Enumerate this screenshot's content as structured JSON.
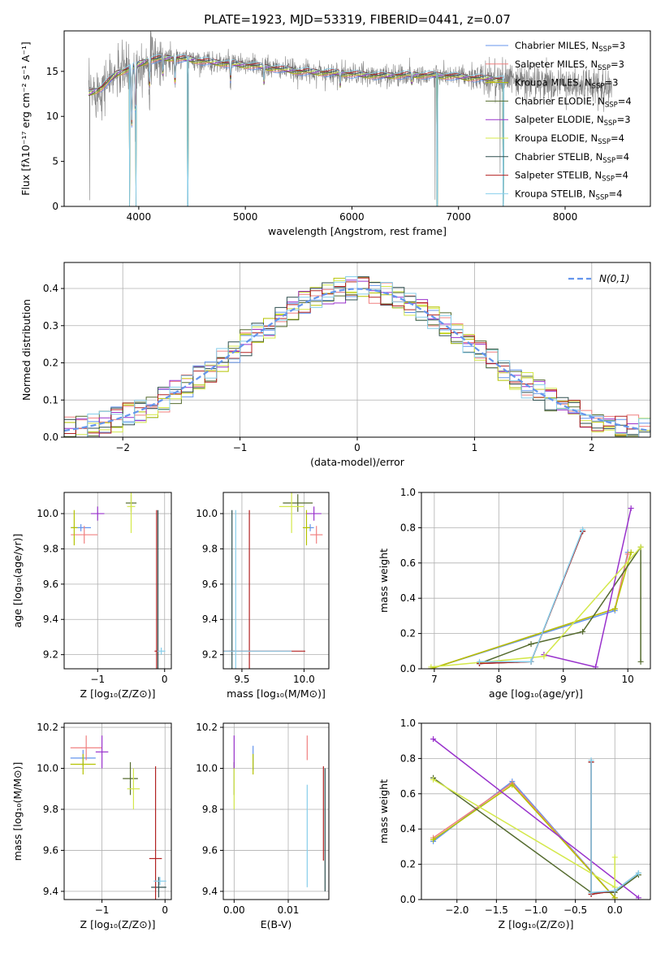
{
  "figure_title": "PLATE=1923, MJD=53319, FIBERID=0441, z=0.07",
  "models": [
    {
      "name": "Chabrier MILES, N",
      "sub": "SSP",
      "suffix": "=3",
      "color": "#6495ed"
    },
    {
      "name": "Salpeter MILES, N",
      "sub": "SSP",
      "suffix": "=3",
      "color": "#f08080"
    },
    {
      "name": "Kroupa MILES, N",
      "sub": "SSP",
      "suffix": "=3",
      "color": "#b5c300"
    },
    {
      "name": "Chabrier ELODIE, N",
      "sub": "SSP",
      "suffix": "=4",
      "color": "#556b2f"
    },
    {
      "name": "Salpeter ELODIE, N",
      "sub": "SSP",
      "suffix": "=3",
      "color": "#9932cc"
    },
    {
      "name": "Kroupa ELODIE, N",
      "sub": "SSP",
      "suffix": "=4",
      "color": "#d4e84a"
    },
    {
      "name": "Chabrier STELIB, N",
      "sub": "SSP",
      "suffix": "=4",
      "color": "#2f4f4f"
    },
    {
      "name": "Salpeter STELIB, N",
      "sub": "SSP",
      "suffix": "=4",
      "color": "#b22222"
    },
    {
      "name": "Kroupa STELIB, N",
      "sub": "SSP",
      "suffix": "=4",
      "color": "#87ceeb"
    }
  ],
  "chart_data": [
    {
      "id": "spectrum",
      "type": "line",
      "xlabel": "wavelength [Angstrom, rest frame]",
      "ylabel": "Flux [fλ10⁻¹⁷ erg cm⁻² s⁻¹ A⁻¹]",
      "xlim": [
        3300,
        8800
      ],
      "ylim": [
        0,
        19.5
      ],
      "xticks": [
        4000,
        5000,
        6000,
        7000,
        8000
      ],
      "yticks": [
        0,
        5,
        10,
        15
      ],
      "legend": "right",
      "data_color": "#808080",
      "x_range": [
        3530,
        8440
      ],
      "model_x_range": [
        3530,
        7430
      ],
      "continuum": [
        [
          3530,
          12.5
        ],
        [
          3650,
          13.2
        ],
        [
          3800,
          14.8
        ],
        [
          3950,
          15.5
        ],
        [
          4100,
          16.3
        ],
        [
          4300,
          16.5
        ],
        [
          4500,
          16.3
        ],
        [
          4700,
          16.0
        ],
        [
          4900,
          15.8
        ],
        [
          5100,
          15.6
        ],
        [
          5300,
          15.3
        ],
        [
          5500,
          15.0
        ],
        [
          5700,
          14.9
        ],
        [
          5900,
          14.8
        ],
        [
          6100,
          14.6
        ],
        [
          6300,
          14.5
        ],
        [
          6500,
          14.6
        ],
        [
          6700,
          14.6
        ],
        [
          6900,
          14.5
        ],
        [
          7100,
          14.3
        ],
        [
          7300,
          14.2
        ],
        [
          7500,
          14.0
        ],
        [
          7700,
          13.8
        ],
        [
          7900,
          13.6
        ],
        [
          8100,
          13.5
        ],
        [
          8300,
          13.4
        ],
        [
          8440,
          13.4
        ]
      ],
      "absorption": [
        [
          3934,
          7
        ],
        [
          3968,
          6
        ],
        [
          4102,
          3
        ],
        [
          4227,
          2
        ],
        [
          4340,
          3
        ],
        [
          4861,
          2
        ],
        [
          5175,
          2
        ],
        [
          5890,
          1.5
        ],
        [
          6563,
          1
        ]
      ],
      "data_spikes": [
        [
          4460,
          -16
        ],
        [
          6780,
          -14
        ],
        [
          7390,
          -12
        ],
        [
          3540,
          -12
        ]
      ],
      "model_drops": [
        [
          3915,
          0
        ],
        [
          3975,
          0
        ],
        [
          4460,
          0
        ],
        [
          6800,
          0
        ],
        [
          7420,
          0
        ]
      ]
    },
    {
      "id": "residuals",
      "type": "histogram",
      "xlabel": "(data-model)/error",
      "ylabel": "Normed distribution",
      "xlim": [
        -2.5,
        2.5
      ],
      "ylim": [
        0,
        0.47
      ],
      "xticks": [
        -2,
        -1,
        0,
        1,
        2
      ],
      "yticks": [
        0.0,
        0.1,
        0.2,
        0.3,
        0.4
      ],
      "bin_width": 0.1,
      "reference_label": "N(0,1)",
      "reference_color": "#6495ed",
      "legend": "top-right"
    },
    {
      "id": "age-vs-Z",
      "type": "errorbar",
      "xlabel": "Z [log₁₀(Z/Z⊙)]",
      "ylabel": "age  [log₁₀(age/yr)]",
      "xlim": [
        -1.5,
        0.1
      ],
      "ylim": [
        9.12,
        10.12
      ],
      "xticks": [
        -1,
        0
      ],
      "yticks": [
        9.2,
        9.4,
        9.6,
        9.8,
        10.0
      ],
      "points": [
        {
          "m": 0,
          "x": -1.25,
          "y": 9.92,
          "xe": 0.15,
          "ye": 0.02
        },
        {
          "m": 1,
          "x": -1.2,
          "y": 9.88,
          "xe": 0.2,
          "ye": 0.05
        },
        {
          "m": 2,
          "x": -1.35,
          "y": 9.92,
          "xe": 0.05,
          "ye": 0.1
        },
        {
          "m": 3,
          "x": -0.5,
          "y": 10.06,
          "xe": 0.08,
          "ye": 0.05
        },
        {
          "m": 4,
          "x": -1.0,
          "y": 10.0,
          "xe": 0.1,
          "ye": 0.04
        },
        {
          "m": 5,
          "x": -0.5,
          "y": 10.04,
          "xe": 0.06,
          "ye": 0.15
        },
        {
          "m": 6,
          "x": -0.1,
          "y": 9.22,
          "xe": 0.02,
          "ye": 0.8
        },
        {
          "m": 7,
          "x": -0.12,
          "y": 9.22,
          "xe": 0.03,
          "ye": 0.8
        },
        {
          "m": 8,
          "x": -0.05,
          "y": 9.22,
          "xe": 0.06,
          "ye": 0.02
        }
      ]
    },
    {
      "id": "age-vs-mass",
      "type": "errorbar",
      "xlabel": "mass [log₁₀(M/M⊙)]",
      "ylabel": "",
      "xlim": [
        9.35,
        10.2
      ],
      "ylim": [
        9.12,
        10.12
      ],
      "xticks": [
        9.5,
        10.0
      ],
      "yticks": [
        9.2,
        9.4,
        9.6,
        9.8,
        10.0
      ],
      "points": [
        {
          "m": 0,
          "x": 10.05,
          "y": 9.92,
          "xe": 0.03,
          "ye": 0.02
        },
        {
          "m": 1,
          "x": 10.1,
          "y": 9.88,
          "xe": 0.05,
          "ye": 0.05
        },
        {
          "m": 2,
          "x": 10.02,
          "y": 9.92,
          "xe": 0.03,
          "ye": 0.1
        },
        {
          "m": 3,
          "x": 9.95,
          "y": 10.06,
          "xe": 0.12,
          "ye": 0.05
        },
        {
          "m": 4,
          "x": 10.08,
          "y": 10.0,
          "xe": 0.06,
          "ye": 0.04
        },
        {
          "m": 5,
          "x": 9.9,
          "y": 10.04,
          "xe": 0.1,
          "ye": 0.15
        },
        {
          "m": 6,
          "x": 9.42,
          "y": 9.22,
          "xe": 0.02,
          "ye": 0.8
        },
        {
          "m": 7,
          "x": 9.56,
          "y": 9.22,
          "xe": 0.45,
          "ye": 0.8
        },
        {
          "m": 8,
          "x": 9.45,
          "y": 9.22,
          "xe": 0.45,
          "ye": 0.8
        }
      ]
    },
    {
      "id": "massweight-vs-age",
      "type": "line",
      "xlabel": "age  [log₁₀(age/yr)]",
      "ylabel": "mass weight",
      "xlim": [
        6.8,
        10.35
      ],
      "ylim": [
        0,
        1.0
      ],
      "xticks": [
        7,
        8,
        9,
        10
      ],
      "yticks": [
        0.0,
        0.2,
        0.4,
        0.6,
        0.8,
        1.0
      ],
      "series": [
        {
          "m": 0,
          "x": [
            6.95,
            9.8,
            10.0
          ],
          "y": [
            0.0,
            0.33,
            0.66
          ]
        },
        {
          "m": 1,
          "x": [
            6.95,
            9.8,
            10.0
          ],
          "y": [
            0.0,
            0.34,
            0.65
          ]
        },
        {
          "m": 2,
          "x": [
            6.95,
            9.8,
            10.05
          ],
          "y": [
            0.0,
            0.34,
            0.66
          ]
        },
        {
          "m": 3,
          "x": [
            7.7,
            8.5,
            9.3,
            10.2,
            10.2
          ],
          "y": [
            0.03,
            0.14,
            0.21,
            0.69,
            0.04
          ]
        },
        {
          "m": 4,
          "x": [
            8.7,
            9.5,
            10.05
          ],
          "y": [
            0.08,
            0.01,
            0.91
          ]
        },
        {
          "m": 5,
          "x": [
            6.95,
            8.7,
            10.2
          ],
          "y": [
            0.01,
            0.07,
            0.69
          ]
        },
        {
          "m": 6,
          "x": [
            7.7,
            8.5,
            9.3
          ],
          "y": [
            0.03,
            0.04,
            0.78
          ]
        },
        {
          "m": 7,
          "x": [
            7.7,
            8.5,
            9.3
          ],
          "y": [
            0.03,
            0.04,
            0.78
          ]
        },
        {
          "m": 8,
          "x": [
            7.7,
            8.5,
            9.3
          ],
          "y": [
            0.04,
            0.04,
            0.79
          ]
        }
      ]
    },
    {
      "id": "mass-vs-Z",
      "type": "errorbar",
      "xlabel": "Z [log₁₀(Z/Z⊙)]",
      "ylabel": "mass [log₁₀(M/M⊙)]",
      "xlim": [
        -1.6,
        0.1
      ],
      "ylim": [
        9.36,
        10.22
      ],
      "xticks": [
        -1,
        0
      ],
      "yticks": [
        9.4,
        9.6,
        9.8,
        10.0,
        10.2
      ],
      "points": [
        {
          "m": 0,
          "x": -1.3,
          "y": 10.05,
          "xe": 0.2,
          "ye": 0.04
        },
        {
          "m": 1,
          "x": -1.25,
          "y": 10.1,
          "xe": 0.25,
          "ye": 0.06
        },
        {
          "m": 2,
          "x": -1.3,
          "y": 10.02,
          "xe": 0.2,
          "ye": 0.05
        },
        {
          "m": 3,
          "x": -0.55,
          "y": 9.95,
          "xe": 0.12,
          "ye": 0.08
        },
        {
          "m": 4,
          "x": -1.0,
          "y": 10.08,
          "xe": 0.1,
          "ye": 0.08
        },
        {
          "m": 5,
          "x": -0.5,
          "y": 9.9,
          "xe": 0.1,
          "ye": 0.1
        },
        {
          "m": 6,
          "x": -0.1,
          "y": 9.42,
          "xe": 0.12,
          "ye": 0.05
        },
        {
          "m": 7,
          "x": -0.15,
          "y": 9.56,
          "xe": 0.1,
          "ye": 0.45
        },
        {
          "m": 8,
          "x": -0.08,
          "y": 9.45,
          "xe": 0.1,
          "ye": 0.02
        }
      ]
    },
    {
      "id": "mass-vs-EBV",
      "type": "errorbar",
      "xlabel": "E(B-V)",
      "ylabel": "",
      "xlim": [
        -0.002,
        0.0175
      ],
      "ylim": [
        9.36,
        10.22
      ],
      "xticks": [
        0.0,
        0.01
      ],
      "yticks": [
        9.4,
        9.6,
        9.8,
        10.0,
        10.2
      ],
      "points": [
        {
          "m": 0,
          "x": 0.0035,
          "y": 10.05,
          "xe": 0,
          "ye": 0.06
        },
        {
          "m": 1,
          "x": 0.0135,
          "y": 10.1,
          "xe": 0,
          "ye": 0.06
        },
        {
          "m": 2,
          "x": 0.0035,
          "y": 10.02,
          "xe": 0,
          "ye": 0.05
        },
        {
          "m": 3,
          "x": 0.0,
          "y": 9.95,
          "xe": 0,
          "ye": 0.08
        },
        {
          "m": 4,
          "x": 0.0,
          "y": 10.08,
          "xe": 0,
          "ye": 0.08
        },
        {
          "m": 5,
          "x": 0.0,
          "y": 9.9,
          "xe": 0,
          "ye": 0.1
        },
        {
          "m": 6,
          "x": 0.0168,
          "y": 9.7,
          "xe": 0,
          "ye": 0.3
        },
        {
          "m": 7,
          "x": 0.0165,
          "y": 9.78,
          "xe": 0,
          "ye": 0.23
        },
        {
          "m": 8,
          "x": 0.0135,
          "y": 9.67,
          "xe": 0,
          "ye": 0.25
        }
      ]
    },
    {
      "id": "massweight-vs-Z",
      "type": "line",
      "xlabel": "Z [log₁₀(Z/Z⊙)]",
      "ylabel": "mass weight",
      "xlim": [
        -2.45,
        0.45
      ],
      "ylim": [
        0,
        1.0
      ],
      "xticks": [
        -2.0,
        -1.5,
        -1.0,
        -0.5,
        0.0
      ],
      "yticks": [
        0.0,
        0.2,
        0.4,
        0.6,
        0.8,
        1.0
      ],
      "series": [
        {
          "m": 0,
          "x": [
            -2.3,
            -1.3,
            0.0
          ],
          "y": [
            0.33,
            0.67,
            0.01
          ]
        },
        {
          "m": 1,
          "x": [
            -2.3,
            -1.3,
            0.0
          ],
          "y": [
            0.35,
            0.66,
            0.01
          ]
        },
        {
          "m": 2,
          "x": [
            -2.3,
            -1.3,
            0.0
          ],
          "y": [
            0.34,
            0.65,
            0.01
          ]
        },
        {
          "m": 3,
          "x": [
            -2.3,
            -0.3,
            0.0,
            0.3
          ],
          "y": [
            0.69,
            0.04,
            0.04,
            0.14
          ]
        },
        {
          "m": 4,
          "x": [
            -2.3,
            0.3
          ],
          "y": [
            0.91,
            0.01
          ]
        },
        {
          "m": 5,
          "x": [
            -2.3,
            0.0,
            0.0
          ],
          "y": [
            0.68,
            0.07,
            0.24
          ]
        },
        {
          "m": 6,
          "x": [
            -0.3,
            -0.3,
            0.0,
            0.3
          ],
          "y": [
            0.78,
            0.03,
            0.05,
            0.15
          ]
        },
        {
          "m": 7,
          "x": [
            -0.3,
            -0.3,
            0.0
          ],
          "y": [
            0.78,
            0.03,
            0.05
          ]
        },
        {
          "m": 8,
          "x": [
            -0.3,
            -0.3,
            0.0,
            0.3
          ],
          "y": [
            0.79,
            0.04,
            0.05,
            0.15
          ]
        }
      ]
    }
  ]
}
